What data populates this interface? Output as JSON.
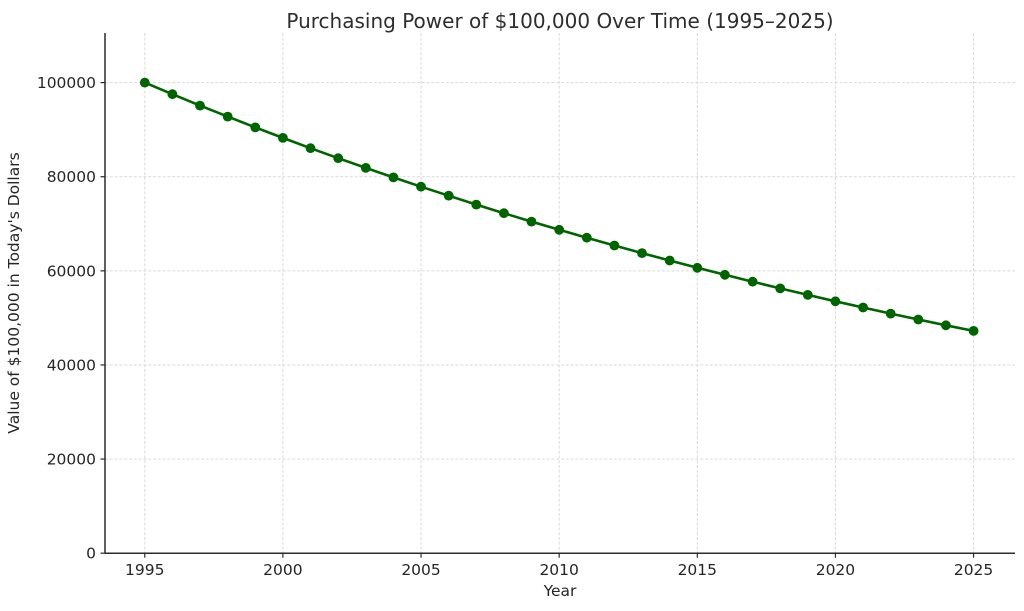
{
  "figure": {
    "background": "#ffffff"
  },
  "chart_data": {
    "type": "line",
    "title": "Purchasing Power of $100,000 Over Time (1995–2025)",
    "xlabel": "Year",
    "ylabel": "Value of $100,000 in Today's Dollars",
    "x": [
      1995,
      1996,
      1997,
      1998,
      1999,
      2000,
      2001,
      2002,
      2003,
      2004,
      2005,
      2006,
      2007,
      2008,
      2009,
      2010,
      2011,
      2012,
      2013,
      2014,
      2015,
      2016,
      2017,
      2018,
      2019,
      2020,
      2021,
      2022,
      2023,
      2024,
      2025
    ],
    "values": [
      100000,
      97531,
      95123,
      92774,
      90484,
      88250,
      86071,
      83946,
      81873,
      79852,
      77880,
      75957,
      74082,
      72253,
      70469,
      68729,
      67032,
      65377,
      63763,
      62189,
      60653,
      59156,
      57695,
      56270,
      54881,
      53526,
      52205,
      50916,
      49659,
      48432,
      47237
    ],
    "xticks": [
      1995,
      2000,
      2005,
      2010,
      2015,
      2020,
      2025
    ],
    "yticks": [
      0,
      20000,
      40000,
      60000,
      80000,
      100000
    ],
    "xlim": [
      1993.56,
      2026.5
    ],
    "ylim": [
      0,
      110540
    ],
    "grid": true,
    "grid_style": "dashed",
    "legend_position": "none",
    "line_color": "#006400",
    "marker": "circle",
    "marker_color": "#006400",
    "grid_color": "#d9d9d9",
    "axis_color": "#2b2b2b",
    "text_color": "#262626",
    "background": "#ffffff"
  }
}
